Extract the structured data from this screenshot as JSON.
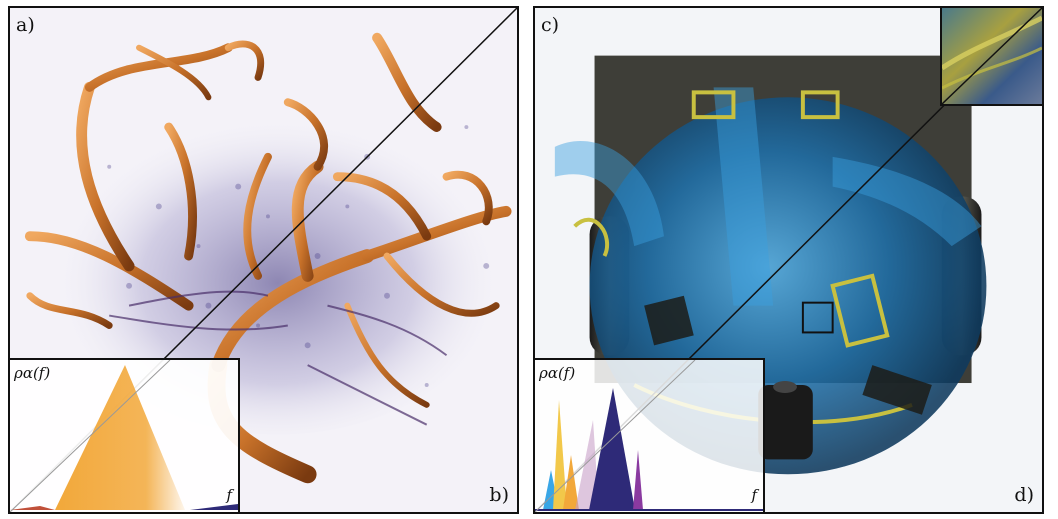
{
  "panels": {
    "left": {
      "label_top": "a)",
      "label_bottom": "b)"
    },
    "right": {
      "label_top": "c)",
      "label_bottom": "d)"
    }
  },
  "insets": {
    "ylabel": "ρα(f)",
    "xlabel": "f"
  },
  "colors": {
    "vessel_orange": "#c8722a",
    "noise_purple": "#3a2f7a",
    "backpack_blue": "#2a86c8",
    "buckle_yellow": "#c8c040",
    "peak_orange": "#f2a83a",
    "peak_navy": "#2e2a78",
    "peak_cyan": "#39a6e6"
  }
}
